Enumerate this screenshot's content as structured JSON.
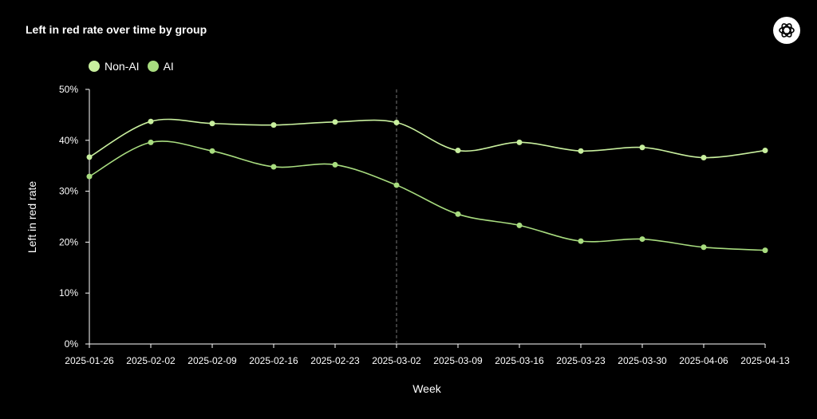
{
  "title": "Left in red rate over time by group",
  "logo_icon": "openai-logo-icon",
  "colors": {
    "background": "#000000",
    "series": [
      "#c8ef9e",
      "#a8dc7f"
    ],
    "axis": "#ffffff",
    "marker_line": "#777777"
  },
  "chart_data": {
    "type": "line",
    "title": "Left in red rate over time by group",
    "xlabel": "Week",
    "ylabel": "Left in red rate",
    "categories": [
      "2025-01-26",
      "2025-02-02",
      "2025-02-09",
      "2025-02-16",
      "2025-02-23",
      "2025-03-02",
      "2025-03-09",
      "2025-03-16",
      "2025-03-23",
      "2025-03-30",
      "2025-04-06",
      "2025-04-13"
    ],
    "series": [
      {
        "name": "Non-AI",
        "values": [
          36.7,
          43.7,
          43.3,
          43.0,
          43.6,
          43.5,
          38.0,
          39.6,
          37.9,
          38.6,
          36.6,
          38.0
        ]
      },
      {
        "name": "AI",
        "values": [
          32.9,
          39.6,
          37.9,
          34.8,
          35.2,
          31.2,
          25.5,
          23.3,
          20.2,
          20.6,
          19.0,
          18.4
        ]
      }
    ],
    "ylim": [
      0,
      50
    ],
    "yticks": [
      "0%",
      "10%",
      "20%",
      "30%",
      "40%",
      "50%"
    ],
    "vline_category": "2025-03-02",
    "legend_position": "top-left",
    "grid": false
  }
}
